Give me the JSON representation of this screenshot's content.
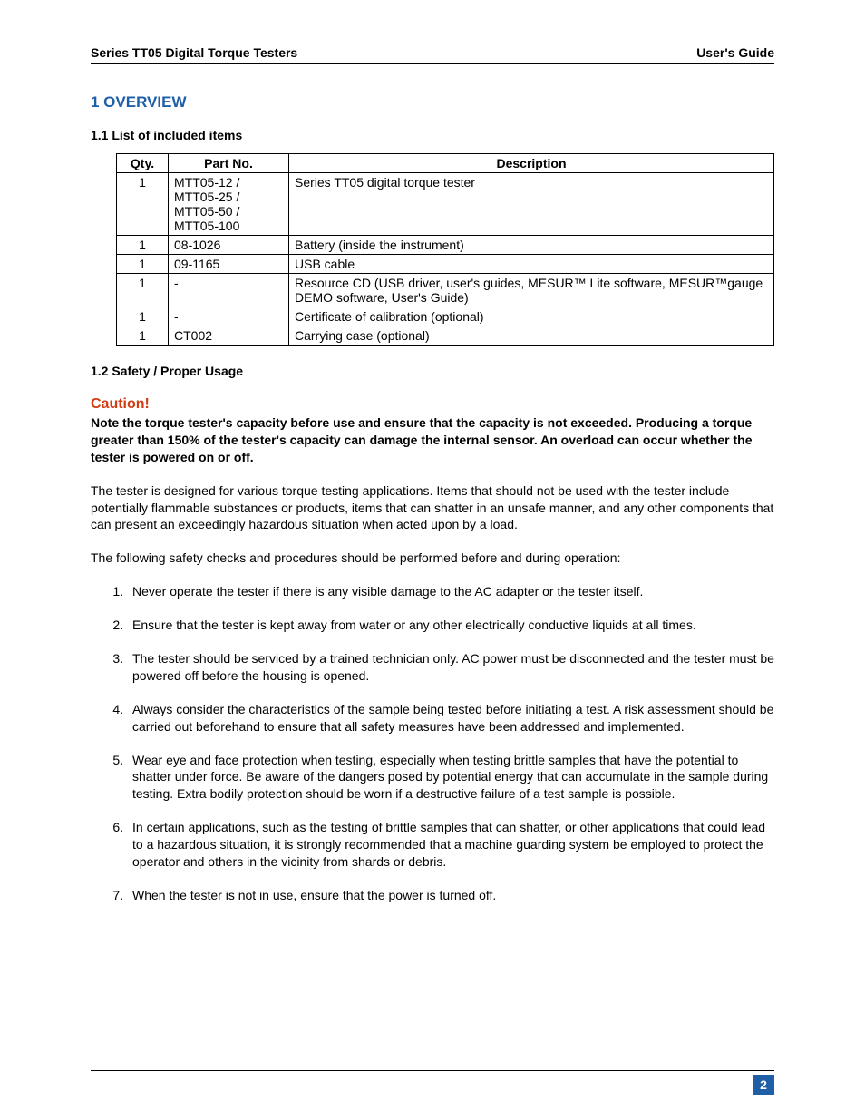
{
  "header": {
    "left": "Series TT05 Digital Torque Testers",
    "right": "User's Guide"
  },
  "section": {
    "number_title": "1   OVERVIEW",
    "sub1": "1.1 List of included items",
    "sub2": "1.2 Safety / Proper Usage"
  },
  "table": {
    "headers": {
      "qty": "Qty.",
      "part": "Part No.",
      "desc": "Description"
    },
    "rows": [
      {
        "qty": "1",
        "part": "MTT05-12 /\nMTT05-25 /\nMTT05-50 /\nMTT05-100",
        "desc": "Series TT05 digital torque tester"
      },
      {
        "qty": "1",
        "part": "08-1026",
        "desc": "Battery (inside the instrument)"
      },
      {
        "qty": "1",
        "part": "09-1165",
        "desc": "USB cable"
      },
      {
        "qty": "1",
        "part": "-",
        "desc": "Resource CD (USB driver, user's guides, MESUR™ Lite software, MESUR™gauge DEMO software, User's Guide)"
      },
      {
        "qty": "1",
        "part": "-",
        "desc": "Certificate of calibration (optional)"
      },
      {
        "qty": "1",
        "part": "CT002",
        "desc": "Carrying case (optional)"
      }
    ]
  },
  "caution": "Caution!",
  "bold_note": "Note the torque tester's capacity before use and ensure that the capacity is not exceeded. Producing a torque greater than 150% of the tester's capacity can damage the internal sensor. An overload can occur whether the tester is powered on or off.",
  "para1": "The tester is designed for various torque testing applications. Items that should not be used with the tester include potentially flammable substances or products, items that can shatter in an unsafe manner, and any other components that can present an exceedingly hazardous situation when acted upon by a load.",
  "para2": "The following safety checks and procedures should be performed before and during operation:",
  "safety_list": [
    "Never operate the tester if there is any visible damage to the AC adapter or the tester itself.",
    "Ensure that the tester is kept away from water or any other electrically conductive liquids at all times.",
    "The tester should be serviced by a trained technician only. AC power must be disconnected and the tester must be powered off before the housing is opened.",
    "Always consider the characteristics of the sample being tested before initiating a test. A risk assessment should be carried out beforehand to ensure that all safety measures have been addressed and implemented.",
    "Wear eye and face protection when testing, especially when testing brittle samples that have the potential to shatter under force. Be aware of the dangers posed by potential energy that can accumulate in the sample during testing. Extra bodily protection should be worn if a destructive failure of a test sample is possible.",
    "In certain applications, such as the testing of brittle samples that can shatter, or other applications that could lead to a hazardous situation, it is strongly recommended that a machine guarding system be employed to protect the operator and others in the vicinity from shards or debris.",
    "When the tester is not in use, ensure that the power is turned off."
  ],
  "page_number": "2"
}
